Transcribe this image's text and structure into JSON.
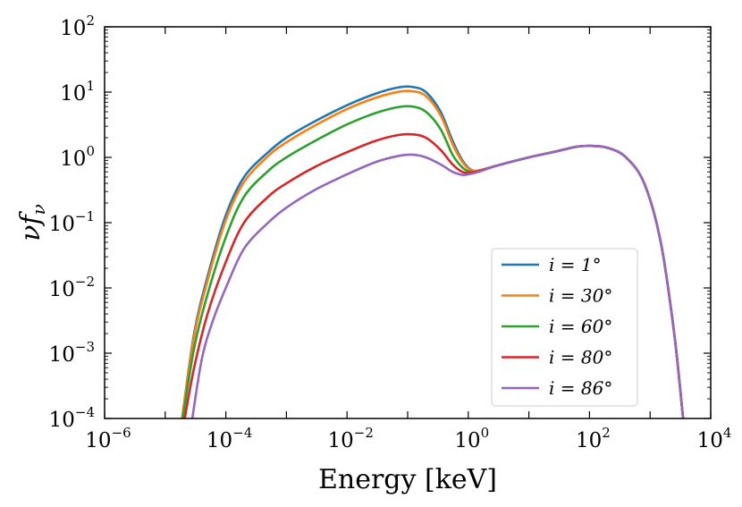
{
  "chart_data": {
    "type": "line",
    "title": "",
    "xlabel": "Energy [keV]",
    "ylabel": "νf",
    "ylabel_sub": "ν",
    "x_scale": "log",
    "y_scale": "log",
    "xlim": [
      1e-06,
      10000.0
    ],
    "ylim": [
      0.0001,
      100.0
    ],
    "x_ticks": [
      {
        "base": "10",
        "exp": "−6"
      },
      {
        "base": "10",
        "exp": "−4"
      },
      {
        "base": "10",
        "exp": "−2"
      },
      {
        "base": "10",
        "exp": "0"
      },
      {
        "base": "10",
        "exp": "2"
      },
      {
        "base": "10",
        "exp": "4"
      }
    ],
    "y_ticks": [
      {
        "base": "10",
        "exp": "−4"
      },
      {
        "base": "10",
        "exp": "−3"
      },
      {
        "base": "10",
        "exp": "−2"
      },
      {
        "base": "10",
        "exp": "−1"
      },
      {
        "base": "10",
        "exp": "0"
      },
      {
        "base": "10",
        "exp": "1"
      },
      {
        "base": "10",
        "exp": "2"
      }
    ],
    "grid": false,
    "legend_position": "lower-right",
    "series": [
      {
        "name": "i = 1°",
        "color": "#1f77b4",
        "x": [
          1.9e-05,
          3e-05,
          5e-05,
          0.0001,
          0.0002,
          0.0005,
          0.001,
          0.003,
          0.01,
          0.03,
          0.07,
          0.12,
          0.2,
          0.35,
          0.55,
          0.8,
          1.1,
          1.5,
          3,
          10,
          30,
          60,
          100,
          200,
          400,
          800,
          1500,
          2500,
          3500
        ],
        "y": [
          0.0001,
          0.002,
          0.015,
          0.13,
          0.5,
          1.2,
          2.0,
          3.6,
          6.3,
          9.5,
          11.8,
          12.0,
          10.0,
          5.0,
          1.8,
          0.9,
          0.65,
          0.63,
          0.75,
          1.0,
          1.25,
          1.45,
          1.5,
          1.4,
          1.0,
          0.4,
          0.05,
          0.002,
          0.0001
        ]
      },
      {
        "name": "i = 30°",
        "color": "#ff7f0e",
        "x": [
          1.9e-05,
          3e-05,
          5e-05,
          0.0001,
          0.0002,
          0.0005,
          0.001,
          0.003,
          0.01,
          0.03,
          0.07,
          0.12,
          0.2,
          0.35,
          0.55,
          0.8,
          1.1,
          1.5,
          3,
          10,
          30,
          60,
          100,
          200,
          400,
          800,
          1500,
          2500,
          3500
        ],
        "y": [
          0.0001,
          0.0018,
          0.013,
          0.11,
          0.42,
          1.05,
          1.7,
          3.1,
          5.5,
          8.2,
          10.1,
          10.3,
          8.7,
          4.4,
          1.6,
          0.85,
          0.64,
          0.63,
          0.75,
          1.0,
          1.25,
          1.45,
          1.5,
          1.4,
          1.0,
          0.4,
          0.05,
          0.002,
          0.0001
        ]
      },
      {
        "name": "i = 60°",
        "color": "#2ca02c",
        "x": [
          1.95e-05,
          3e-05,
          5e-05,
          0.0001,
          0.0002,
          0.0005,
          0.001,
          0.003,
          0.01,
          0.03,
          0.07,
          0.12,
          0.2,
          0.35,
          0.55,
          0.8,
          1.1,
          1.5,
          3,
          10,
          30,
          60,
          100,
          200,
          400,
          800,
          1500,
          2500,
          3500
        ],
        "y": [
          0.0001,
          0.0012,
          0.008,
          0.06,
          0.25,
          0.62,
          1.0,
          1.8,
          3.2,
          4.8,
          5.9,
          6.0,
          5.0,
          2.7,
          1.1,
          0.7,
          0.6,
          0.62,
          0.75,
          1.0,
          1.25,
          1.45,
          1.5,
          1.4,
          1.0,
          0.4,
          0.05,
          0.002,
          0.0001
        ]
      },
      {
        "name": "i = 80°",
        "color": "#d62728",
        "x": [
          2.1e-05,
          3e-05,
          5e-05,
          0.0001,
          0.0002,
          0.0005,
          0.001,
          0.003,
          0.01,
          0.03,
          0.07,
          0.12,
          0.2,
          0.35,
          0.55,
          0.8,
          1.1,
          1.5,
          3,
          10,
          30,
          60,
          100,
          200,
          400,
          800,
          1500,
          2500,
          3500
        ],
        "y": [
          0.0001,
          0.0006,
          0.004,
          0.025,
          0.1,
          0.25,
          0.4,
          0.72,
          1.2,
          1.8,
          2.2,
          2.25,
          2.0,
          1.3,
          0.78,
          0.6,
          0.58,
          0.62,
          0.75,
          1.0,
          1.25,
          1.45,
          1.5,
          1.4,
          1.0,
          0.4,
          0.05,
          0.002,
          0.0001
        ]
      },
      {
        "name": "i = 86°",
        "color": "#9467bd",
        "x": [
          2.8e-05,
          4e-05,
          6e-05,
          0.0001,
          0.0002,
          0.0005,
          0.001,
          0.003,
          0.01,
          0.03,
          0.07,
          0.12,
          0.2,
          0.35,
          0.55,
          0.8,
          1.0,
          1.5,
          3,
          10,
          30,
          60,
          100,
          200,
          400,
          800,
          1500,
          2500,
          3500
        ],
        "y": [
          0.0001,
          0.0008,
          0.003,
          0.01,
          0.04,
          0.1,
          0.17,
          0.32,
          0.55,
          0.85,
          1.05,
          1.1,
          1.0,
          0.78,
          0.6,
          0.54,
          0.55,
          0.6,
          0.75,
          1.0,
          1.25,
          1.45,
          1.5,
          1.4,
          1.0,
          0.4,
          0.05,
          0.002,
          0.0001
        ]
      }
    ]
  }
}
